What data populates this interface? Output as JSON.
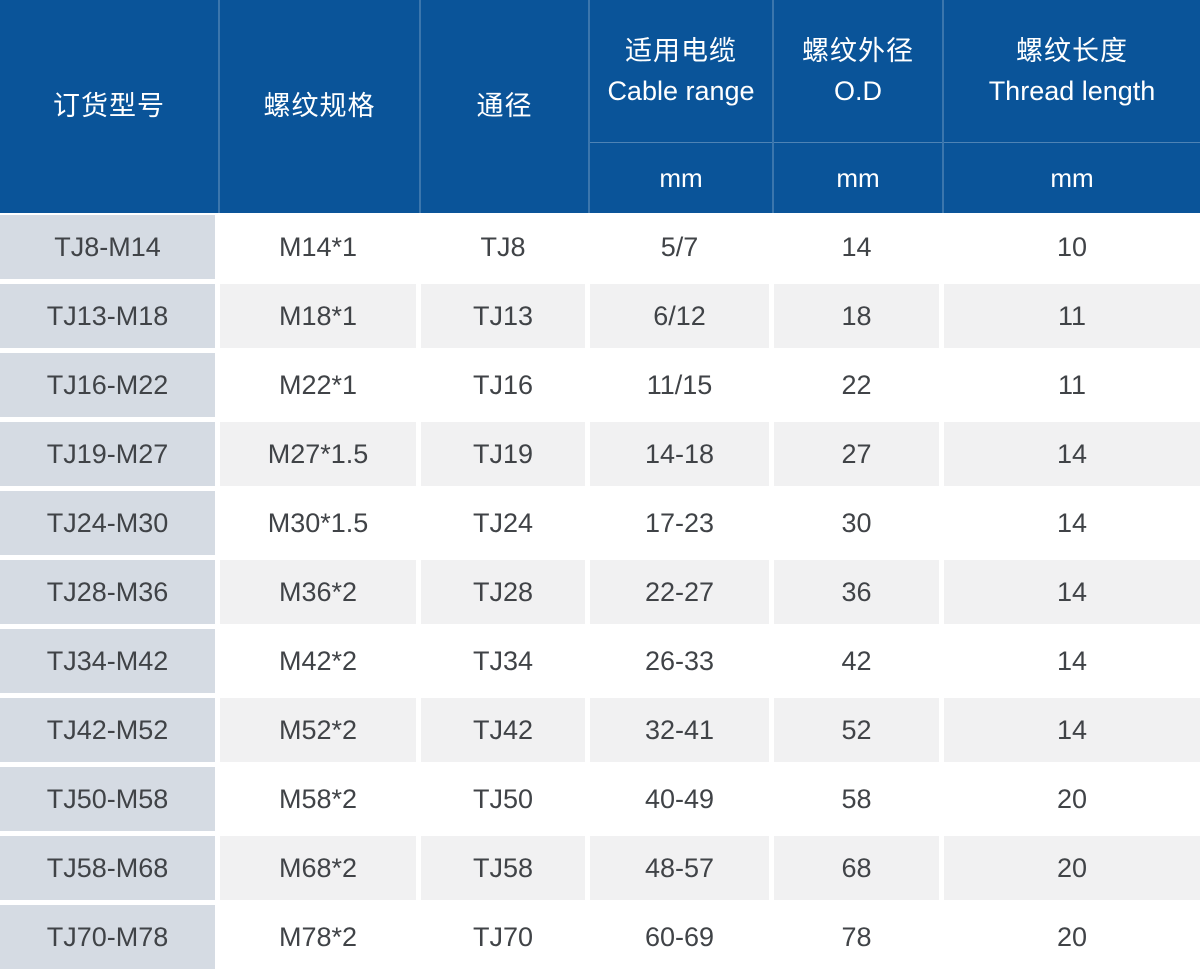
{
  "table_title": "thread-spec-table",
  "header": {
    "simple": [
      "订货型号",
      "螺纹规格",
      "通径"
    ],
    "units": [
      {
        "zh": "适用电缆",
        "en": "Cable range",
        "unit": "mm"
      },
      {
        "zh": "螺纹外径",
        "en": "O.D",
        "unit": "mm"
      },
      {
        "zh": "螺纹长度",
        "en": "Thread length",
        "unit": "mm"
      }
    ]
  },
  "rows": [
    [
      "TJ8-M14",
      "M14*1",
      "TJ8",
      "5/7",
      "14",
      "10"
    ],
    [
      "TJ13-M18",
      "M18*1",
      "TJ13",
      "6/12",
      "18",
      "11"
    ],
    [
      "TJ16-M22",
      "M22*1",
      "TJ16",
      "11/15",
      "22",
      "11"
    ],
    [
      "TJ19-M27",
      "M27*1.5",
      "TJ19",
      "14-18",
      "27",
      "14"
    ],
    [
      "TJ24-M30",
      "M30*1.5",
      "TJ24",
      "17-23",
      "30",
      "14"
    ],
    [
      "TJ28-M36",
      "M36*2",
      "TJ28",
      "22-27",
      "36",
      "14"
    ],
    [
      "TJ34-M42",
      "M42*2",
      "TJ34",
      "26-33",
      "42",
      "14"
    ],
    [
      "TJ42-M52",
      "M52*2",
      "TJ42",
      "32-41",
      "52",
      "14"
    ],
    [
      "TJ50-M58",
      "M58*2",
      "TJ50",
      "40-49",
      "58",
      "20"
    ],
    [
      "TJ58-M68",
      "M68*2",
      "TJ58",
      "48-57",
      "68",
      "20"
    ],
    [
      "TJ70-M78",
      "M78*2",
      "TJ70",
      "60-69",
      "78",
      "20"
    ]
  ],
  "colors": {
    "header_bg": "#0A5499",
    "header_text": "#FFFFFF",
    "first_col_bg": "#D5DBE3",
    "alt_row_bg": "#F1F1F2",
    "body_text": "#404347",
    "divider": "rgba(255,255,255,0.20)"
  }
}
